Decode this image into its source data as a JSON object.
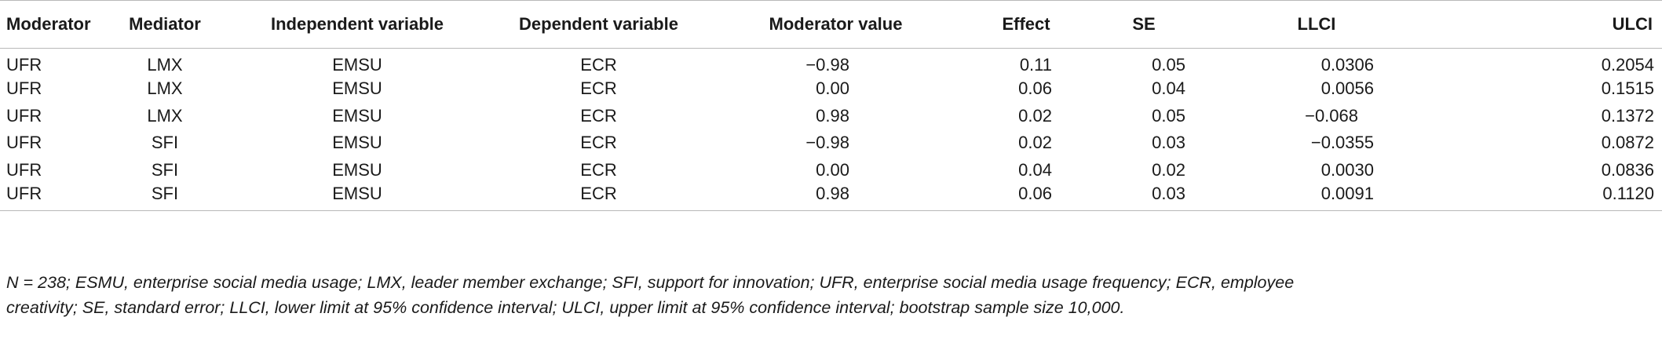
{
  "table": {
    "headers": [
      "Moderator",
      "Mediator",
      "Independent variable",
      "Dependent variable",
      "Moderator value",
      "Effect",
      "SE",
      "LLCI",
      "ULCI"
    ],
    "rows": [
      [
        "UFR",
        "LMX",
        "EMSU",
        "ECR",
        "−0.98",
        "0.11",
        "0.05",
        "0.0306",
        "0.2054"
      ],
      [
        "UFR",
        "LMX",
        "EMSU",
        "ECR",
        "0.00",
        "0.06",
        "0.04",
        "0.0056",
        "0.1515"
      ],
      [
        "UFR",
        "LMX",
        "EMSU",
        "ECR",
        "0.98",
        "0.02",
        "0.05",
        "−0.068",
        "0.1372"
      ],
      [
        "UFR",
        "SFI",
        "EMSU",
        "ECR",
        "−0.98",
        "0.02",
        "0.03",
        "−0.0355",
        "0.0872"
      ],
      [
        "UFR",
        "SFI",
        "EMSU",
        "ECR",
        "0.00",
        "0.04",
        "0.02",
        "0.0030",
        "0.0836"
      ],
      [
        "UFR",
        "SFI",
        "EMSU",
        "ECR",
        "0.98",
        "0.06",
        "0.03",
        "0.0091",
        "0.1120"
      ]
    ]
  },
  "footnote": {
    "line1": "N = 238; ESMU, enterprise social media usage; LMX, leader member exchange; SFI, support for innovation; UFR, enterprise social media usage frequency; ECR, employee",
    "line2": "creativity; SE, standard error; LLCI, lower limit at 95% confidence interval; ULCI, upper limit at 95% confidence interval; bootstrap sample size 10,000."
  }
}
